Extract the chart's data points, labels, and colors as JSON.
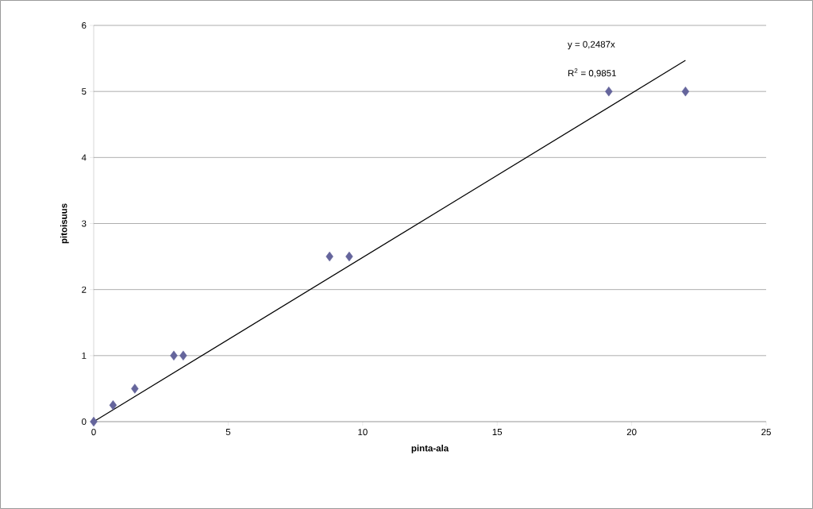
{
  "chart_data": {
    "type": "scatter",
    "xlabel": "pinta-ala",
    "ylabel": "pitoisuus",
    "xlim": [
      0,
      25
    ],
    "xticks": [
      0,
      5,
      10,
      15,
      20,
      25
    ],
    "ylim": [
      0,
      6
    ],
    "yticks": [
      0,
      1,
      2,
      3,
      4,
      5,
      6
    ],
    "grid": "y",
    "series": [
      {
        "marker": "diamond",
        "color": "#65659c",
        "x": [
          0,
          0.72,
          1.53,
          2.98,
          3.33,
          8.77,
          9.5,
          19.15,
          22.0
        ],
        "values": [
          0,
          0.25,
          0.5,
          1,
          1,
          2.5,
          2.5,
          5,
          5
        ]
      },
      {
        "type": "line",
        "marker": "none",
        "color": "#000000",
        "x": [
          0,
          22.0
        ],
        "values": [
          0,
          5.47
        ]
      }
    ],
    "annotations": [
      "y = 0,2487x",
      "R$^{2}$ = 0,9851"
    ]
  }
}
